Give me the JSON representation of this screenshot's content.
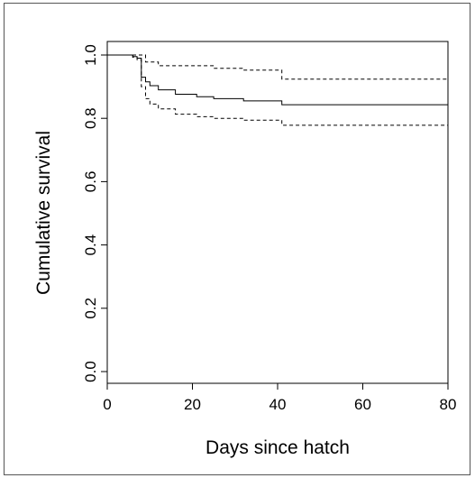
{
  "chart_data": {
    "type": "line",
    "xlabel": "Days since hatch",
    "ylabel": "Cumulative survival",
    "xlim": [
      0,
      80
    ],
    "ylim": [
      0,
      1
    ],
    "x_ticks": [
      "0",
      "20",
      "40",
      "60",
      "80"
    ],
    "y_ticks": [
      "0.0",
      "0.2",
      "0.4",
      "0.6",
      "0.8",
      "1.0"
    ],
    "grid": false,
    "legend": "none",
    "series": [
      {
        "style": "solid",
        "color": "#000000",
        "points": [
          [
            0,
            1.0
          ],
          [
            6,
            1.0
          ],
          [
            6,
            0.995
          ],
          [
            7,
            0.995
          ],
          [
            7,
            0.99
          ],
          [
            8,
            0.99
          ],
          [
            8,
            0.93
          ],
          [
            9,
            0.93
          ],
          [
            9,
            0.915
          ],
          [
            10,
            0.915
          ],
          [
            10,
            0.903
          ],
          [
            12,
            0.903
          ],
          [
            12,
            0.89
          ],
          [
            16,
            0.89
          ],
          [
            16,
            0.876
          ],
          [
            21,
            0.876
          ],
          [
            21,
            0.868
          ],
          [
            25,
            0.868
          ],
          [
            25,
            0.862
          ],
          [
            32,
            0.862
          ],
          [
            32,
            0.855
          ],
          [
            41,
            0.855
          ],
          [
            41,
            0.843
          ],
          [
            80,
            0.843
          ]
        ]
      },
      {
        "style": "dashed",
        "color": "#000000",
        "points": [
          [
            0,
            1.0
          ],
          [
            9,
            1.0
          ],
          [
            9,
            0.978
          ],
          [
            12,
            0.978
          ],
          [
            12,
            0.966
          ],
          [
            25,
            0.966
          ],
          [
            25,
            0.958
          ],
          [
            32,
            0.958
          ],
          [
            32,
            0.952
          ],
          [
            41,
            0.952
          ],
          [
            41,
            0.924
          ],
          [
            80,
            0.924
          ]
        ]
      },
      {
        "style": "dashed",
        "color": "#000000",
        "points": [
          [
            0,
            1.0
          ],
          [
            6,
            1.0
          ],
          [
            6,
            0.993
          ],
          [
            7,
            0.993
          ],
          [
            7,
            0.985
          ],
          [
            8,
            0.985
          ],
          [
            8,
            0.9
          ],
          [
            9,
            0.9
          ],
          [
            9,
            0.862
          ],
          [
            10,
            0.862
          ],
          [
            10,
            0.845
          ],
          [
            12,
            0.845
          ],
          [
            12,
            0.83
          ],
          [
            16,
            0.83
          ],
          [
            16,
            0.813
          ],
          [
            21,
            0.813
          ],
          [
            21,
            0.805
          ],
          [
            25,
            0.805
          ],
          [
            25,
            0.8
          ],
          [
            32,
            0.8
          ],
          [
            32,
            0.794
          ],
          [
            41,
            0.794
          ],
          [
            41,
            0.778
          ],
          [
            80,
            0.778
          ]
        ]
      }
    ]
  }
}
